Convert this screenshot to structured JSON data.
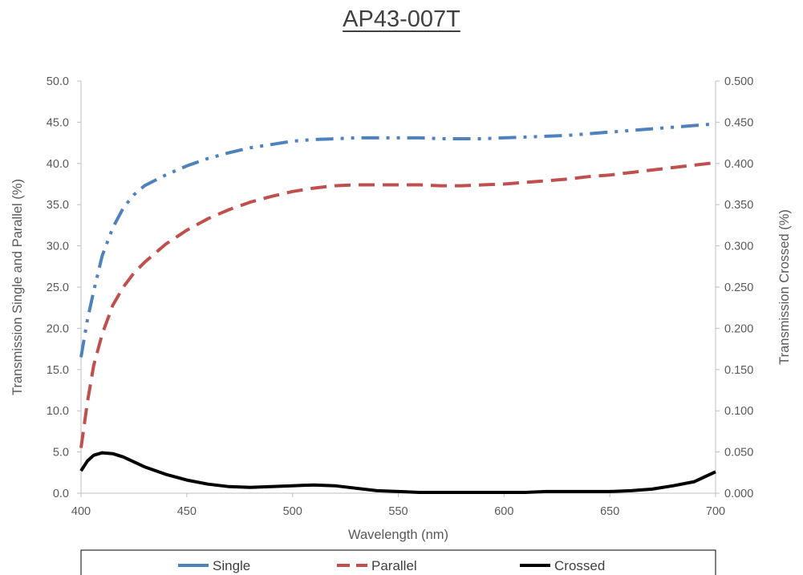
{
  "chart_data": {
    "type": "line",
    "title": "AP43-007T",
    "xlabel": "Wavelength (nm)",
    "ylabel": "Transmission Single and Parallel (%)",
    "y2label": "Transmission Crossed (%)",
    "xlim": [
      400,
      700
    ],
    "ylim": [
      0,
      50
    ],
    "y2lim": [
      0,
      0.5
    ],
    "x_ticks": [
      "400",
      "450",
      "500",
      "550",
      "600",
      "650",
      "700"
    ],
    "y_ticks": [
      "0.0",
      "5.0",
      "10.0",
      "15.0",
      "20.0",
      "25.0",
      "30.0",
      "35.0",
      "40.0",
      "45.0",
      "50.0"
    ],
    "y2_ticks": [
      "0.000",
      "0.050",
      "0.100",
      "0.150",
      "0.200",
      "0.250",
      "0.300",
      "0.350",
      "0.400",
      "0.450",
      "0.500"
    ],
    "grid": false,
    "legend_position": "bottom",
    "x": [
      400,
      403,
      406,
      410,
      415,
      420,
      425,
      430,
      440,
      450,
      460,
      470,
      480,
      490,
      500,
      510,
      520,
      530,
      540,
      550,
      560,
      570,
      580,
      590,
      600,
      610,
      620,
      630,
      640,
      650,
      660,
      670,
      680,
      690,
      700
    ],
    "series": [
      {
        "name": "Single",
        "axis": "left",
        "color": "#4F81BD",
        "dash": "dash-dot-dot",
        "values": [
          16.5,
          21.0,
          24.5,
          28.8,
          32.2,
          34.6,
          36.2,
          37.3,
          38.6,
          39.7,
          40.6,
          41.3,
          41.9,
          42.3,
          42.7,
          42.9,
          43.0,
          43.1,
          43.1,
          43.1,
          43.1,
          43.0,
          43.0,
          43.0,
          43.1,
          43.2,
          43.3,
          43.4,
          43.6,
          43.8,
          44.0,
          44.2,
          44.4,
          44.6,
          44.8
        ]
      },
      {
        "name": "Parallel",
        "axis": "left",
        "color": "#C0504D",
        "dash": "dash",
        "values": [
          5.5,
          11.0,
          15.5,
          19.3,
          22.8,
          25.0,
          26.7,
          28.0,
          30.2,
          31.9,
          33.3,
          34.4,
          35.3,
          36.0,
          36.6,
          37.0,
          37.3,
          37.4,
          37.4,
          37.4,
          37.4,
          37.3,
          37.3,
          37.4,
          37.5,
          37.7,
          37.9,
          38.1,
          38.4,
          38.6,
          38.9,
          39.2,
          39.5,
          39.8,
          40.1
        ]
      },
      {
        "name": "Crossed",
        "axis": "right",
        "color": "#000000",
        "dash": "solid",
        "values": [
          0.027,
          0.039,
          0.046,
          0.049,
          0.048,
          0.044,
          0.038,
          0.032,
          0.023,
          0.016,
          0.011,
          0.008,
          0.007,
          0.008,
          0.009,
          0.01,
          0.009,
          0.006,
          0.003,
          0.002,
          0.001,
          0.001,
          0.001,
          0.001,
          0.001,
          0.001,
          0.002,
          0.002,
          0.002,
          0.002,
          0.003,
          0.005,
          0.009,
          0.014,
          0.026
        ]
      }
    ]
  }
}
